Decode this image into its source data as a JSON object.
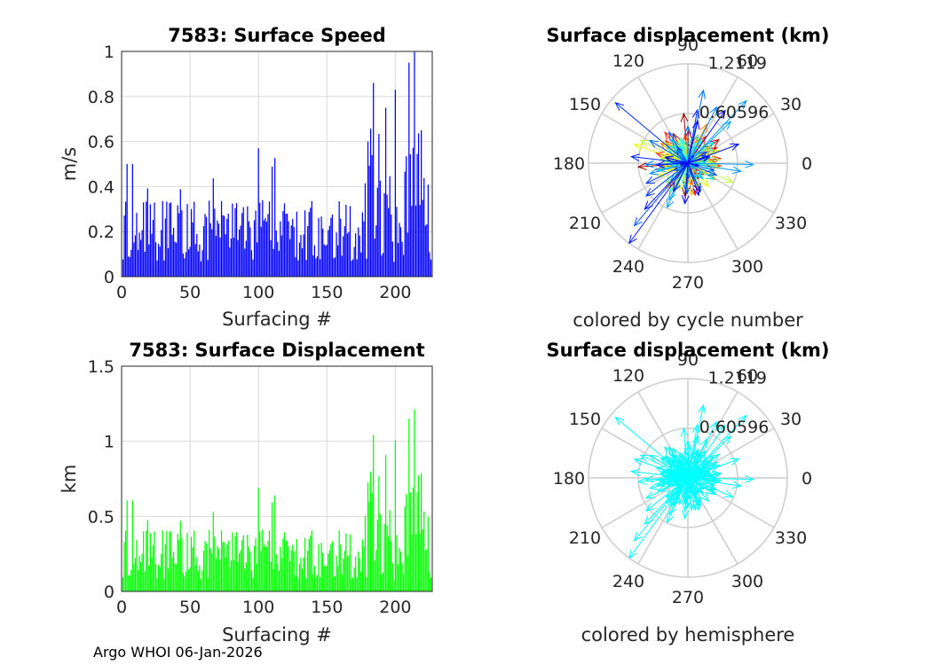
{
  "footer": "Argo WHOI 06-Jan-2026",
  "colors": {
    "speed_bars": "#0000ff",
    "displacement_bars": "#00ff00",
    "hemisphere_arrows": "#00ffff",
    "grid": "#d9d9d9",
    "polar_grid": "#cccccc"
  },
  "chart_data": [
    {
      "id": "speed",
      "type": "bar",
      "title": "7583: Surface Speed",
      "xlabel": "Surfacing #",
      "ylabel": "m/s",
      "xlim": [
        0,
        227
      ],
      "ylim": [
        0,
        1
      ],
      "xticks": [
        0,
        50,
        100,
        150,
        200
      ],
      "yticks": [
        0,
        0.2,
        0.4,
        0.6,
        0.8,
        1
      ],
      "ytick_labels": [
        "0",
        "0.2",
        "0.4",
        "0.6",
        "0.8",
        "1"
      ],
      "grid": true,
      "n": 226,
      "values_highlights": [
        {
          "x": 4,
          "y": 0.5
        },
        {
          "x": 8,
          "y": 0.5
        },
        {
          "x": 36,
          "y": 0.33
        },
        {
          "x": 100,
          "y": 0.57
        },
        {
          "x": 180,
          "y": 0.6
        },
        {
          "x": 184,
          "y": 0.86
        },
        {
          "x": 193,
          "y": 0.75
        },
        {
          "x": 200,
          "y": 0.83
        },
        {
          "x": 210,
          "y": 0.95
        },
        {
          "x": 214,
          "y": 1.0
        },
        {
          "x": 219,
          "y": 0.65
        }
      ]
    },
    {
      "id": "displacement",
      "type": "bar",
      "title": "7583: Surface Displacement",
      "xlabel": "Surfacing #",
      "ylabel": "km",
      "xlim": [
        0,
        227
      ],
      "ylim": [
        0,
        1.5
      ],
      "xticks": [
        0,
        50,
        100,
        150,
        200
      ],
      "yticks": [
        0,
        0.5,
        1,
        1.5
      ],
      "ytick_labels": [
        "0",
        "0.5",
        "1",
        "1.5"
      ],
      "grid": true,
      "note": "displacement values = speed x 1.2119 km"
    },
    {
      "id": "polar-cycle",
      "type": "polar-compass",
      "title": "Surface displacement (km)",
      "caption": "colored by cycle number",
      "rmax": 1.2119,
      "rings": [
        0.60596,
        1.2119
      ],
      "ring_labels": [
        "0.60596",
        "1.2119"
      ],
      "angle_labels": [
        "0",
        "30",
        "60",
        "90",
        "120",
        "150",
        "180",
        "210",
        "240",
        "270",
        "300",
        "330"
      ],
      "colormap": "jet"
    },
    {
      "id": "polar-hemi",
      "type": "polar-compass",
      "title": "Surface displacement (km)",
      "caption": "colored by hemisphere",
      "rmax": 1.2119,
      "rings": [
        0.60596,
        1.2119
      ],
      "ring_labels": [
        "0.60596",
        "1.2119"
      ],
      "angle_labels": [
        "0",
        "30",
        "60",
        "90",
        "120",
        "150",
        "180",
        "210",
        "240",
        "270",
        "300",
        "330"
      ],
      "colormap": "cyan"
    }
  ]
}
